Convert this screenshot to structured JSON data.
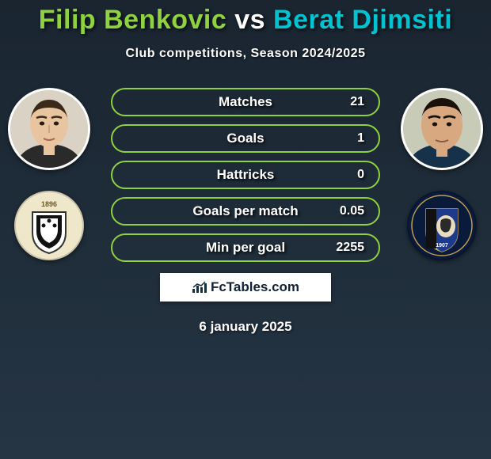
{
  "title": {
    "player1_name": "Filip Benkovic",
    "vs": "vs",
    "player2_name": "Berat Djimsiti",
    "player1_color": "#8fd13f",
    "player2_color": "#00c2d1",
    "subtitle": "Club competitions, Season 2024/2025",
    "title_fontsize": 34,
    "subtitle_fontsize": 16
  },
  "stats": {
    "rows": [
      {
        "label": "Matches",
        "value": "21"
      },
      {
        "label": "Goals",
        "value": "1"
      },
      {
        "label": "Hattricks",
        "value": "0"
      },
      {
        "label": "Goals per match",
        "value": "0.05"
      },
      {
        "label": "Min per goal",
        "value": "2255"
      }
    ],
    "pill_border_color": "#8fd13f",
    "pill_text_color": "#ffffff",
    "pill_width": 340,
    "pill_height": 36,
    "label_fontsize": 17,
    "value_fontsize": 16
  },
  "left": {
    "avatar": {
      "skin": "#e8c4a0",
      "bg": "#d9d2c5"
    },
    "crest": {
      "bg": "#efe7c9",
      "shield_stroke": "#333333",
      "shield_fill": "#ffffff",
      "stripe": "#111111",
      "year": "1896"
    }
  },
  "right": {
    "avatar": {
      "skin": "#d8a880",
      "bg": "#c8cbb8"
    },
    "crest": {
      "bg": "#0a1a3a",
      "ring": "#ffffff",
      "stripe": "#111111",
      "blue": "#1e3a8a",
      "year": "1907"
    }
  },
  "brand": {
    "text": "FcTables.com",
    "bg": "#ffffff",
    "color": "#123040"
  },
  "date": "6 january 2025",
  "background_colors": [
    "#1a2530",
    "#263544"
  ]
}
